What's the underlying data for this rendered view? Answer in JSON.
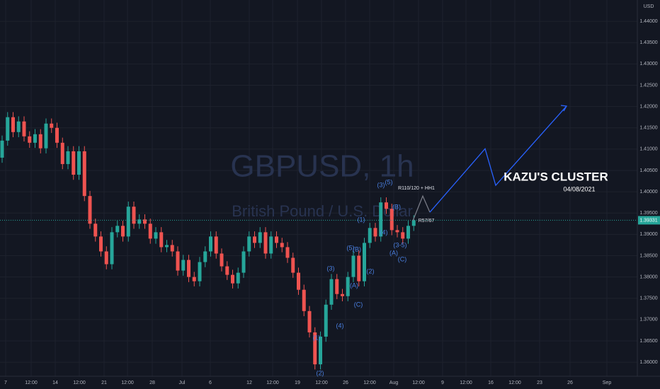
{
  "chart_data": {
    "type": "candlestick",
    "watermark": {
      "title": "GBPUSD, 1h",
      "subtitle": "British Pound / U.S. Dollar"
    },
    "currency": "USD",
    "up_color": "#26a69a",
    "down_color": "#ef5350",
    "grid": true,
    "ylim": [
      1.3567,
      1.445
    ],
    "yticks": [
      {
        "value": 1.44,
        "label": "1.44000"
      },
      {
        "value": 1.435,
        "label": "1.43500"
      },
      {
        "value": 1.43,
        "label": "1.43000"
      },
      {
        "value": 1.425,
        "label": "1.42500"
      },
      {
        "value": 1.42,
        "label": "1.42000"
      },
      {
        "value": 1.415,
        "label": "1.41500"
      },
      {
        "value": 1.41,
        "label": "1.41000"
      },
      {
        "value": 1.405,
        "label": "1.40500"
      },
      {
        "value": 1.4,
        "label": "1.40000"
      },
      {
        "value": 1.395,
        "label": "1.39500"
      },
      {
        "value": 1.39,
        "label": "1.39000"
      },
      {
        "value": 1.385,
        "label": "1.38500"
      },
      {
        "value": 1.38,
        "label": "1.38000"
      },
      {
        "value": 1.375,
        "label": "1.37500"
      },
      {
        "value": 1.37,
        "label": "1.37000"
      },
      {
        "value": 1.365,
        "label": "1.36500"
      },
      {
        "value": 1.36,
        "label": "1.36000"
      }
    ],
    "categories": [
      "7",
      "12:00",
      "14",
      "12:00",
      "21",
      "12:00",
      "28",
      "Jul",
      "6",
      "12",
      "12:00",
      "19",
      "12:00",
      "26",
      "12:00",
      "Aug",
      "12:00",
      "9",
      "12:00",
      "16",
      "12:00",
      "23",
      "26",
      "Sep"
    ],
    "last_price": {
      "value": 1.39331,
      "label": "1.39331"
    },
    "candles": [
      [
        1.408,
        1.4132,
        1.4068,
        1.412
      ],
      [
        1.412,
        1.4187,
        1.4108,
        1.4175
      ],
      [
        1.4175,
        1.4187,
        1.4128,
        1.414
      ],
      [
        1.414,
        1.4177,
        1.4128,
        1.4165
      ],
      [
        1.4165,
        1.4177,
        1.4118,
        1.413
      ],
      [
        1.413,
        1.4142,
        1.4103,
        1.4115
      ],
      [
        1.4115,
        1.4147,
        1.4103,
        1.4135
      ],
      [
        1.4135,
        1.4147,
        1.409,
        1.4102
      ],
      [
        1.4102,
        1.4172,
        1.409,
        1.416
      ],
      [
        1.416,
        1.4172,
        1.4138,
        1.415
      ],
      [
        1.415,
        1.4162,
        1.4103,
        1.4115
      ],
      [
        1.4115,
        1.4127,
        1.4053,
        1.4065
      ],
      [
        1.4065,
        1.4107,
        1.4053,
        1.4095
      ],
      [
        1.4095,
        1.4107,
        1.4028,
        1.404
      ],
      [
        1.404,
        1.4107,
        1.4028,
        1.4095
      ],
      [
        1.4095,
        1.4107,
        1.3978,
        1.399
      ],
      [
        1.399,
        1.4002,
        1.3913,
        1.3925
      ],
      [
        1.3925,
        1.3937,
        1.3883,
        1.3895
      ],
      [
        1.3895,
        1.3907,
        1.3848,
        1.386
      ],
      [
        1.386,
        1.3872,
        1.3818,
        1.383
      ],
      [
        1.383,
        1.3917,
        1.3818,
        1.3905
      ],
      [
        1.3905,
        1.3932,
        1.3893,
        1.392
      ],
      [
        1.392,
        1.3932,
        1.3883,
        1.3895
      ],
      [
        1.3895,
        1.3977,
        1.3883,
        1.3965
      ],
      [
        1.3965,
        1.3977,
        1.3913,
        1.3925
      ],
      [
        1.3925,
        1.3947,
        1.3913,
        1.3935
      ],
      [
        1.3935,
        1.3947,
        1.3913,
        1.3925
      ],
      [
        1.3925,
        1.3937,
        1.3878,
        1.389
      ],
      [
        1.389,
        1.3917,
        1.3878,
        1.3905
      ],
      [
        1.3905,
        1.3917,
        1.3858,
        1.387
      ],
      [
        1.387,
        1.3887,
        1.3858,
        1.3875
      ],
      [
        1.3875,
        1.3887,
        1.3848,
        1.386
      ],
      [
        1.386,
        1.3872,
        1.3803,
        1.3815
      ],
      [
        1.3815,
        1.3852,
        1.3803,
        1.384
      ],
      [
        1.384,
        1.3852,
        1.3788,
        1.38
      ],
      [
        1.38,
        1.3812,
        1.3778,
        1.379
      ],
      [
        1.379,
        1.3847,
        1.3778,
        1.3835
      ],
      [
        1.3835,
        1.3872,
        1.3823,
        1.386
      ],
      [
        1.386,
        1.3907,
        1.3848,
        1.3895
      ],
      [
        1.3895,
        1.3907,
        1.3843,
        1.3855
      ],
      [
        1.3855,
        1.3867,
        1.3813,
        1.3825
      ],
      [
        1.3825,
        1.3837,
        1.3793,
        1.3805
      ],
      [
        1.3805,
        1.3817,
        1.3773,
        1.3785
      ],
      [
        1.3785,
        1.3822,
        1.3773,
        1.381
      ],
      [
        1.381,
        1.3872,
        1.3798,
        1.386
      ],
      [
        1.386,
        1.3907,
        1.3848,
        1.3895
      ],
      [
        1.3895,
        1.3907,
        1.3868,
        1.388
      ],
      [
        1.388,
        1.3917,
        1.3868,
        1.3905
      ],
      [
        1.3905,
        1.3917,
        1.3843,
        1.3855
      ],
      [
        1.3855,
        1.3907,
        1.3843,
        1.3895
      ],
      [
        1.3895,
        1.3907,
        1.3868,
        1.388
      ],
      [
        1.388,
        1.3892,
        1.3858,
        1.387
      ],
      [
        1.387,
        1.3882,
        1.3833,
        1.3845
      ],
      [
        1.3845,
        1.3857,
        1.3798,
        1.381
      ],
      [
        1.381,
        1.3822,
        1.3758,
        1.377
      ],
      [
        1.377,
        1.3782,
        1.3708,
        1.372
      ],
      [
        1.372,
        1.3732,
        1.3658,
        1.367
      ],
      [
        1.367,
        1.3682,
        1.3583,
        1.3595
      ],
      [
        1.3595,
        1.3672,
        1.3583,
        1.366
      ],
      [
        1.366,
        1.3747,
        1.3648,
        1.3735
      ],
      [
        1.3735,
        1.3807,
        1.3723,
        1.3795
      ],
      [
        1.3795,
        1.3807,
        1.3748,
        1.376
      ],
      [
        1.376,
        1.3772,
        1.3743,
        1.3755
      ],
      [
        1.3755,
        1.3812,
        1.3743,
        1.38
      ],
      [
        1.38,
        1.3862,
        1.3788,
        1.385
      ],
      [
        1.385,
        1.3862,
        1.3778,
        1.379
      ],
      [
        1.379,
        1.3892,
        1.3778,
        1.388
      ],
      [
        1.388,
        1.3927,
        1.3868,
        1.3915
      ],
      [
        1.3915,
        1.3927,
        1.3883,
        1.3895
      ],
      [
        1.3895,
        1.3987,
        1.3883,
        1.3975
      ],
      [
        1.3975,
        1.3987,
        1.3948,
        1.396
      ],
      [
        1.396,
        1.3972,
        1.3898,
        1.391
      ],
      [
        1.391,
        1.3922,
        1.3893,
        1.3905
      ],
      [
        1.3905,
        1.3917,
        1.3878,
        1.389
      ],
      [
        1.389,
        1.3932,
        1.3878,
        1.392
      ],
      [
        1.392,
        1.3945,
        1.3908,
        1.3933
      ]
    ],
    "projection": [
      {
        "color": "#787b86",
        "values": [
          1.3932,
          1.399,
          1.3952
        ]
      },
      {
        "color": "#2962ff",
        "values": [
          1.3952,
          1.4101,
          1.4015,
          1.4201
        ]
      }
    ],
    "annotations": [
      "R110/120 + HH1",
      "R57/67"
    ],
    "waves": [
      "(1)",
      "(2)",
      "(3)",
      "(4)",
      "(5)",
      "(B)",
      "(A)",
      "(C)",
      "(2)",
      "(1)",
      "(3)",
      "(5)",
      "(B)",
      "(4)",
      "(A)",
      "(3-5)",
      "(C)"
    ],
    "headline": {
      "title": "KAZU'S CLUSTER",
      "date": "04/08/2021"
    }
  }
}
